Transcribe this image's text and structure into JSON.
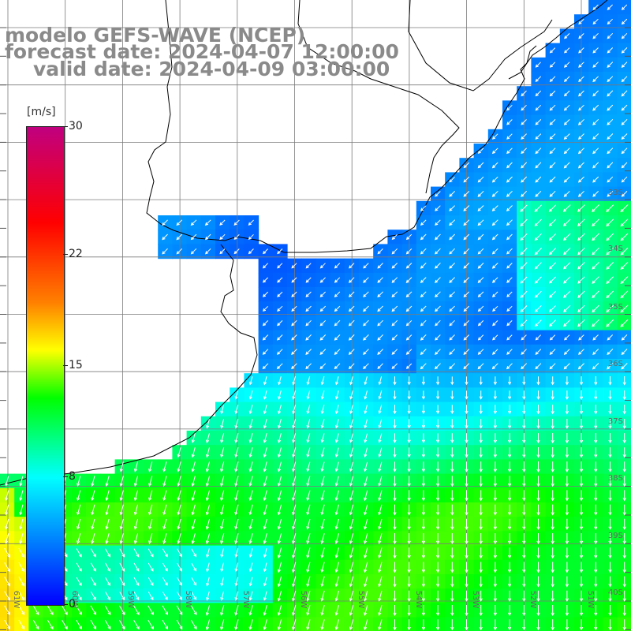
{
  "title": {
    "line1": "modelo GEFS-WAVE (NCEP)",
    "line2": "forecast date: 2024-04-07 12:00:00",
    "line3": "valid date: 2024-04-09 03:00:00"
  },
  "colorbar": {
    "units": "[m/s]",
    "ticks": [
      {
        "label": "30",
        "value": 30
      },
      {
        "label": "22",
        "value": 22
      },
      {
        "label": "15",
        "value": 15
      },
      {
        "label": "8",
        "value": 8
      },
      {
        "label": "0",
        "value": 0
      }
    ],
    "vmin": 0,
    "vmax": 30,
    "colors": [
      "#0000ff",
      "#00ffff",
      "#00ff00",
      "#ffff00",
      "#ff8000",
      "#ff0000",
      "#c00080"
    ]
  },
  "map": {
    "lat_labels": [
      "33S",
      "34S",
      "35S",
      "36S",
      "37S",
      "38S",
      "39S",
      "40S"
    ],
    "lon_labels": [
      "61W",
      "60W",
      "59W",
      "58W",
      "57W",
      "56W",
      "55W",
      "54W",
      "53W",
      "52W",
      "51W"
    ],
    "wind_direction": "from north-east in the Rio de la Plata, from north / north-west offshore",
    "wind_speed_range_ms": [
      3,
      14
    ]
  }
}
